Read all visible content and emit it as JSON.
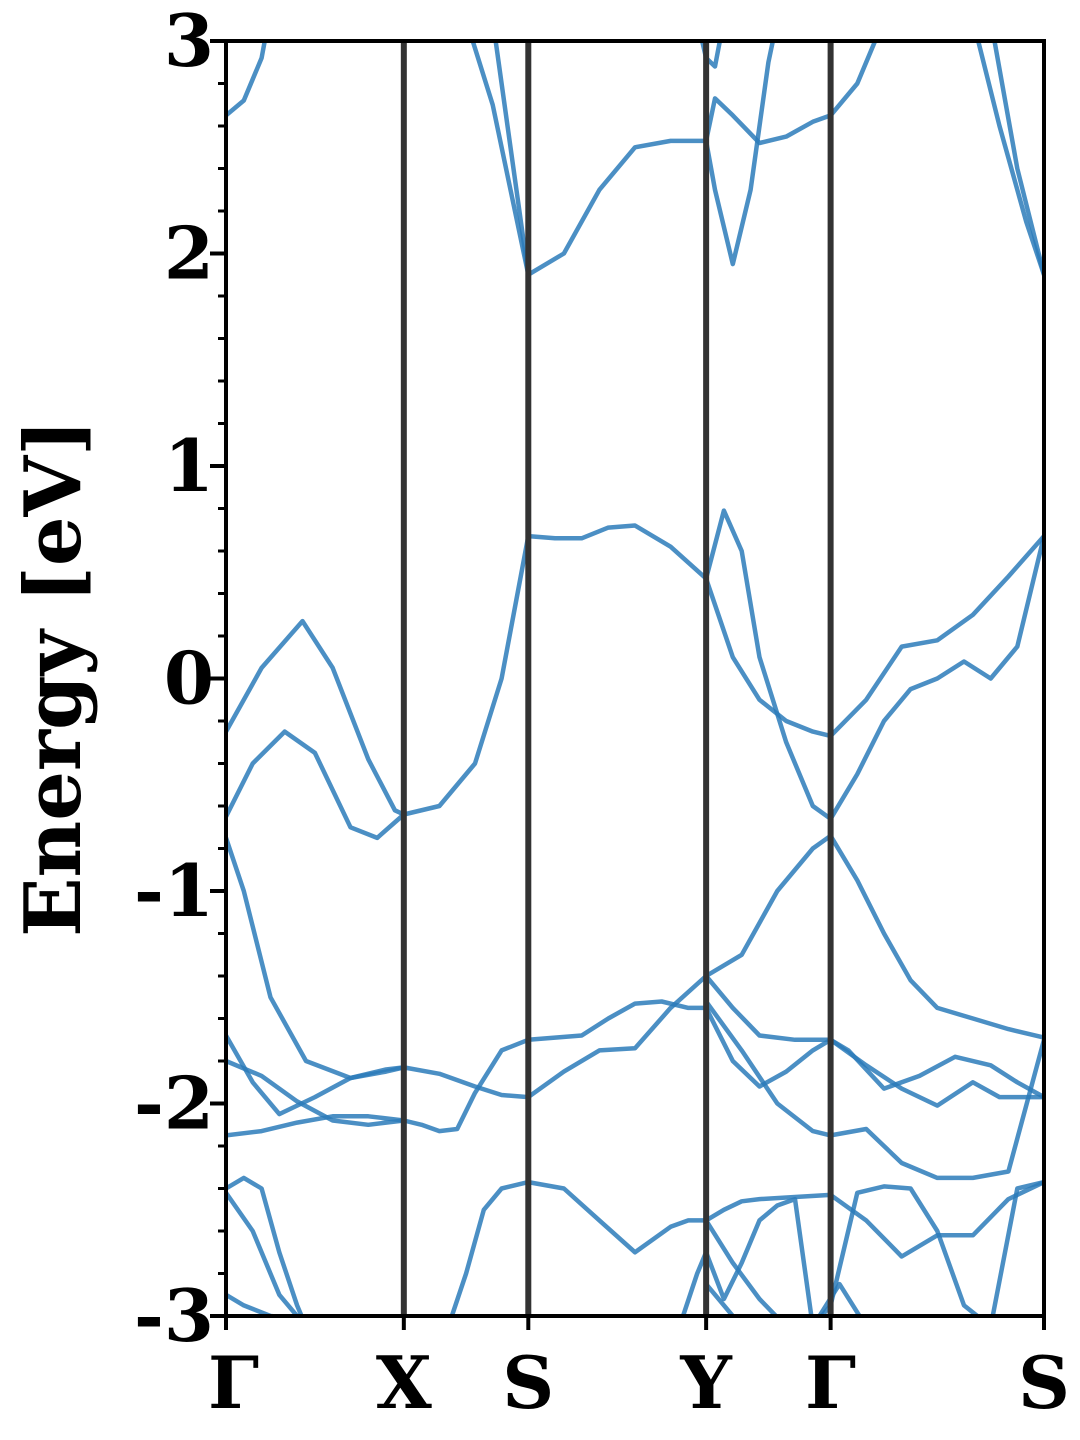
{
  "chart_data": {
    "type": "line",
    "title": "",
    "xlabel": "",
    "ylabel": "Energy [eV]",
    "ylim": [
      -3,
      3
    ],
    "xlim": [
      0,
      4.6
    ],
    "grid": false,
    "legend": "none",
    "line_color": "#2b7bba",
    "kpath_line_color": "#333333",
    "yticks": [
      -3,
      -2,
      -1,
      0,
      1,
      2,
      3
    ],
    "ytick_labels": [
      "-3",
      "-2",
      "-1",
      "0",
      "1",
      "2",
      "3"
    ],
    "yminor_step": 0.2,
    "kpoints": [
      {
        "label": "Γ",
        "x": 0
      },
      {
        "label": "X",
        "x": 1.0
      },
      {
        "label": "S",
        "x": 1.7
      },
      {
        "label": "Y",
        "x": 2.7
      },
      {
        "label": "Γ",
        "x": 3.4
      },
      {
        "label": "S",
        "x": 4.6
      }
    ],
    "series": [
      {
        "x": [
          0,
          0.1,
          0.2,
          0.24
        ],
        "y": [
          2.65,
          2.72,
          2.92,
          3.1
        ]
      },
      {
        "x": [
          0,
          0.2,
          0.43,
          0.6,
          0.8,
          0.95,
          1.0,
          1.2,
          1.4,
          1.55,
          1.7,
          1.85,
          2.0,
          2.15,
          2.3,
          2.5,
          2.7,
          2.85,
          3.0,
          3.15,
          3.3,
          3.4,
          3.6,
          3.8,
          4.0,
          4.2,
          4.4,
          4.6
        ],
        "y": [
          -0.25,
          0.05,
          0.27,
          0.05,
          -0.38,
          -0.62,
          -0.64,
          -0.6,
          -0.4,
          0.0,
          0.67,
          0.66,
          0.66,
          0.71,
          0.72,
          0.62,
          0.47,
          0.1,
          -0.1,
          -0.2,
          -0.25,
          -0.27,
          -0.1,
          0.15,
          0.18,
          0.3,
          0.48,
          0.67
        ]
      },
      {
        "x": [
          0,
          0.15,
          0.33,
          0.5,
          0.7,
          0.85,
          1.0
        ],
        "y": [
          -0.65,
          -0.4,
          -0.25,
          -0.35,
          -0.7,
          -0.75,
          -0.64
        ]
      },
      {
        "x": [
          2.7,
          2.8,
          2.9,
          3.0,
          3.15,
          3.3,
          3.4,
          3.55,
          3.7,
          3.85,
          4.0,
          4.15,
          4.3,
          4.45,
          4.6
        ],
        "y": [
          0.47,
          0.79,
          0.6,
          0.1,
          -0.3,
          -0.6,
          -0.66,
          -0.45,
          -0.2,
          -0.05,
          0.0,
          0.08,
          0.0,
          0.15,
          0.67
        ]
      },
      {
        "x": [
          0,
          0.1,
          0.25,
          0.45,
          0.7,
          0.9,
          1.0,
          1.2,
          1.4,
          1.55,
          1.7
        ],
        "y": [
          -0.75,
          -1.0,
          -1.5,
          -1.8,
          -1.88,
          -1.84,
          -1.83,
          -1.86,
          -1.92,
          -1.96,
          -1.97
        ]
      },
      {
        "x": [
          1.7,
          1.85,
          2.0,
          2.15,
          2.3,
          2.45,
          2.6,
          2.7,
          2.85,
          3.0,
          3.15,
          3.3,
          3.4,
          3.5,
          3.7,
          3.9,
          4.1,
          4.3,
          4.45,
          4.6
        ],
        "y": [
          -1.7,
          -1.69,
          -1.68,
          -1.6,
          -1.53,
          -1.52,
          -1.55,
          -1.55,
          -1.8,
          -1.92,
          -1.85,
          -1.75,
          -1.7,
          -1.75,
          -1.93,
          -1.87,
          -1.78,
          -1.82,
          -1.9,
          -1.97
        ]
      },
      {
        "x": [
          0,
          0.15,
          0.3,
          0.5,
          0.7,
          0.9,
          1.0
        ],
        "y": [
          -1.68,
          -1.9,
          -2.05,
          -1.97,
          -1.88,
          -1.85,
          -1.83
        ]
      },
      {
        "x": [
          0,
          0.2,
          0.4,
          0.6,
          0.8,
          1.0
        ],
        "y": [
          -1.8,
          -1.87,
          -1.99,
          -2.08,
          -2.1,
          -2.08
        ]
      },
      {
        "x": [
          0,
          0.2,
          0.4,
          0.6,
          0.8,
          1.0,
          1.1,
          1.2,
          1.3,
          1.4,
          1.55,
          1.7
        ],
        "y": [
          -2.15,
          -2.13,
          -2.09,
          -2.06,
          -2.06,
          -2.08,
          -2.1,
          -2.13,
          -2.12,
          -1.95,
          -1.75,
          -1.7
        ]
      },
      {
        "x": [
          1.7,
          1.9,
          2.1,
          2.3,
          2.5,
          2.7,
          2.9,
          3.1,
          3.3,
          3.4
        ],
        "y": [
          -1.97,
          -1.85,
          -1.75,
          -1.74,
          -1.55,
          -1.4,
          -1.3,
          -1.0,
          -0.8,
          -0.74
        ]
      },
      {
        "x": [
          3.4,
          3.55,
          3.7,
          3.85,
          4.0,
          4.2,
          4.4,
          4.6
        ],
        "y": [
          -0.74,
          -0.95,
          -1.2,
          -1.42,
          -1.55,
          -1.6,
          -1.65,
          -1.69
        ]
      },
      {
        "x": [
          2.7,
          2.85,
          3.0,
          3.2,
          3.4,
          3.6,
          3.8,
          4.0,
          4.2,
          4.35,
          4.5,
          4.6
        ],
        "y": [
          -1.4,
          -1.55,
          -1.68,
          -1.7,
          -1.7,
          -1.82,
          -1.93,
          -2.01,
          -1.9,
          -1.97,
          -1.97,
          -1.97
        ]
      },
      {
        "x": [
          2.7,
          2.9,
          3.1,
          3.3,
          3.4,
          3.6,
          3.8,
          4.0,
          4.2,
          4.4,
          4.6
        ],
        "y": [
          -1.52,
          -1.75,
          -2.0,
          -2.13,
          -2.15,
          -2.12,
          -2.28,
          -2.35,
          -2.35,
          -2.32,
          -1.7
        ]
      },
      {
        "x": [
          1.7,
          1.9,
          2.1,
          2.3,
          2.5,
          2.6,
          2.7,
          2.8,
          2.9,
          3.0,
          3.2,
          3.4,
          3.6,
          3.8,
          4.0,
          4.2,
          4.4,
          4.6
        ],
        "y": [
          -2.37,
          -2.4,
          -2.55,
          -2.7,
          -2.58,
          -2.55,
          -2.55,
          -2.5,
          -2.46,
          -2.45,
          -2.44,
          -2.43,
          -2.55,
          -2.72,
          -2.62,
          -2.62,
          -2.45,
          -2.37
        ]
      },
      {
        "x": [
          0,
          0.1,
          0.2,
          0.3,
          0.4,
          0.45
        ],
        "y": [
          -2.4,
          -2.35,
          -2.4,
          -2.7,
          -2.95,
          -3.05
        ]
      },
      {
        "x": [
          0,
          0.15,
          0.3,
          0.45
        ],
        "y": [
          -2.42,
          -2.6,
          -2.9,
          -3.05
        ]
      },
      {
        "x": [
          0,
          0.1,
          0.25,
          0.5,
          0.6
        ],
        "y": [
          -2.9,
          -2.95,
          -3.0,
          -3.02,
          -3.05
        ]
      },
      {
        "x": [
          1.25,
          1.35,
          1.45,
          1.55,
          1.7
        ],
        "y": [
          -3.05,
          -2.8,
          -2.5,
          -2.4,
          -2.37
        ]
      },
      {
        "x": [
          2.55,
          2.65,
          2.7,
          2.8,
          2.9,
          3.0,
          3.1,
          3.2,
          3.3
        ],
        "y": [
          -3.05,
          -2.8,
          -2.7,
          -2.92,
          -2.75,
          -2.55,
          -2.48,
          -2.45,
          -3.05
        ]
      },
      {
        "x": [
          2.7,
          2.85,
          3.0,
          3.15,
          3.3,
          3.4,
          3.55,
          3.7,
          3.85,
          4.0,
          4.15,
          4.3,
          4.45,
          4.6
        ],
        "y": [
          -2.55,
          -2.75,
          -2.92,
          -3.05,
          -3.05,
          -2.95,
          -2.42,
          -2.39,
          -2.4,
          -2.6,
          -2.95,
          -3.05,
          -2.4,
          -2.37
        ]
      },
      {
        "x": [
          3.3,
          3.45,
          3.6
        ],
        "y": [
          -3.05,
          -2.85,
          -3.05
        ]
      },
      {
        "x": [
          2.7,
          2.85,
          3.0
        ],
        "y": [
          -2.85,
          -3.0,
          -3.05
        ]
      },
      {
        "x": [
          1.35,
          1.5,
          1.6,
          1.7,
          1.9,
          2.1,
          2.3,
          2.5,
          2.7
        ],
        "y": [
          3.1,
          2.7,
          2.3,
          1.9,
          2.0,
          2.3,
          2.5,
          2.53,
          2.53
        ]
      },
      {
        "x": [
          1.5,
          1.6,
          1.7
        ],
        "y": [
          3.1,
          2.5,
          1.9
        ]
      },
      {
        "x": [
          2.7,
          2.75,
          2.85,
          3.0,
          3.15,
          3.3,
          3.4,
          3.55,
          3.7
        ],
        "y": [
          2.53,
          2.73,
          2.65,
          2.52,
          2.55,
          2.62,
          2.65,
          2.8,
          3.1
        ]
      },
      {
        "x": [
          2.7,
          2.75,
          2.85,
          2.95,
          3.05,
          3.1
        ],
        "y": [
          2.53,
          2.3,
          1.95,
          2.3,
          2.9,
          3.1
        ]
      },
      {
        "x": [
          2.65,
          2.7,
          2.75,
          2.8
        ],
        "y": [
          3.1,
          2.92,
          2.88,
          3.1
        ]
      },
      {
        "x": [
          4.2,
          4.35,
          4.5,
          4.6
        ],
        "y": [
          3.1,
          2.6,
          2.15,
          1.9
        ]
      },
      {
        "x": [
          4.3,
          4.45,
          4.6
        ],
        "y": [
          3.1,
          2.4,
          1.9
        ]
      }
    ]
  }
}
